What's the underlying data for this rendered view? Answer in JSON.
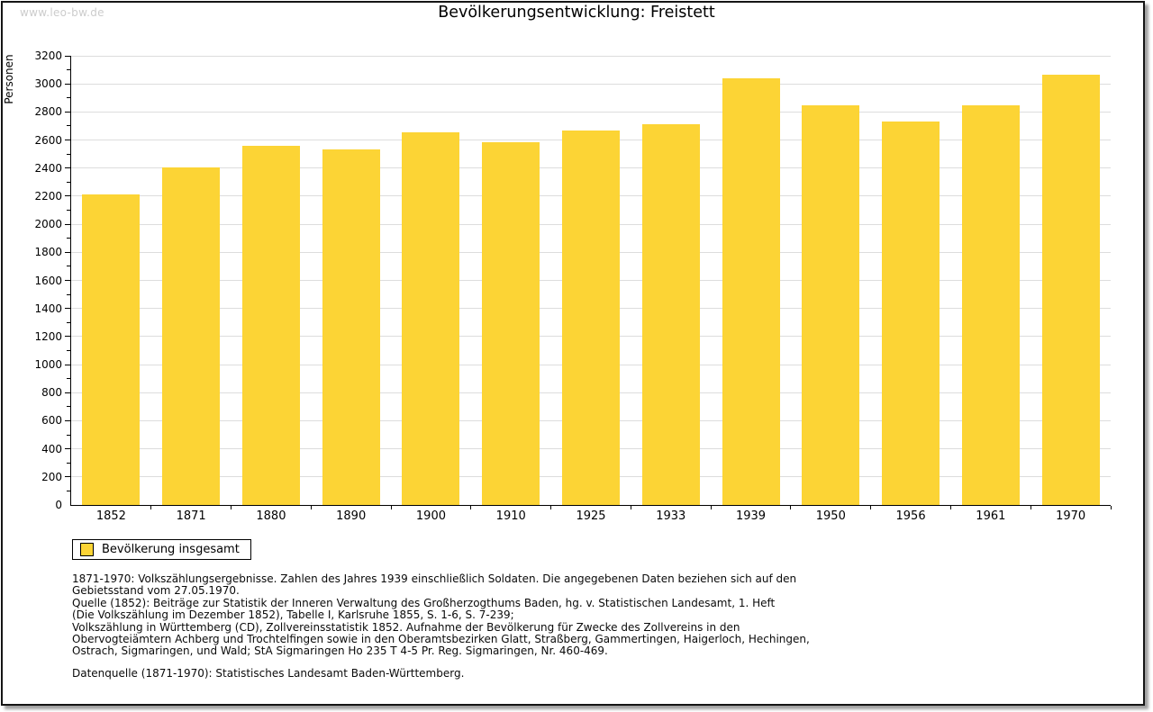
{
  "watermark": "www.leo-bw.de",
  "title": "Bevölkerungsentwicklung: Freistett",
  "chart_data": {
    "type": "bar",
    "title": "Bevölkerungsentwicklung: Freistett",
    "xlabel": "",
    "ylabel": "Personen",
    "categories": [
      "1852",
      "1871",
      "1880",
      "1890",
      "1900",
      "1910",
      "1925",
      "1933",
      "1939",
      "1950",
      "1956",
      "1961",
      "1970"
    ],
    "series": [
      {
        "name": "Bevölkerung insgesamt",
        "color": "#FCD435",
        "values": [
          2210,
          2405,
          2560,
          2530,
          2655,
          2585,
          2670,
          2715,
          3040,
          2850,
          2735,
          2845,
          3065
        ]
      }
    ],
    "ylim": [
      0,
      3200
    ],
    "y_major_step": 200,
    "y_minor_step": 100,
    "grid": true,
    "legend_position": "bottom-left"
  },
  "legend": {
    "items": [
      {
        "label": "Bevölkerung insgesamt",
        "color": "#FCD435"
      }
    ]
  },
  "footnotes": [
    "1871-1970: Volkszählungsergebnisse. Zahlen des Jahres 1939 einschließlich Soldaten. Die angegebenen Daten beziehen sich auf den",
    "Gebietsstand vom 27.05.1970.",
    "Quelle (1852): Beiträge zur Statistik der Inneren Verwaltung des Großherzogthums Baden, hg. v. Statistischen Landesamt, 1. Heft",
    "(Die Volkszählung im Dezember 1852), Tabelle I, Karlsruhe 1855, S. 1-6, S. 7-239;",
    "Volkszählung in Württemberg (CD), Zollvereinsstatistik 1852. Aufnahme der Bevölkerung für Zwecke des Zollvereins in den",
    "Obervogteiämtern Achberg und Trochtelfingen sowie in den Oberamtsbezirken Glatt, Straßberg, Gammertingen, Haigerloch, Hechingen,",
    "Ostrach, Sigmaringen, und Wald; StA Sigmaringen Ho 235 T 4-5 Pr. Reg. Sigmaringen, Nr. 460-469."
  ],
  "datasource": "Datenquelle (1871-1970): Statistisches Landesamt Baden-Württemberg.",
  "colors": {
    "bar": "#FCD435",
    "grid": "#DDDDDD",
    "axis": "#000000",
    "watermark": "#CCCCCC"
  }
}
